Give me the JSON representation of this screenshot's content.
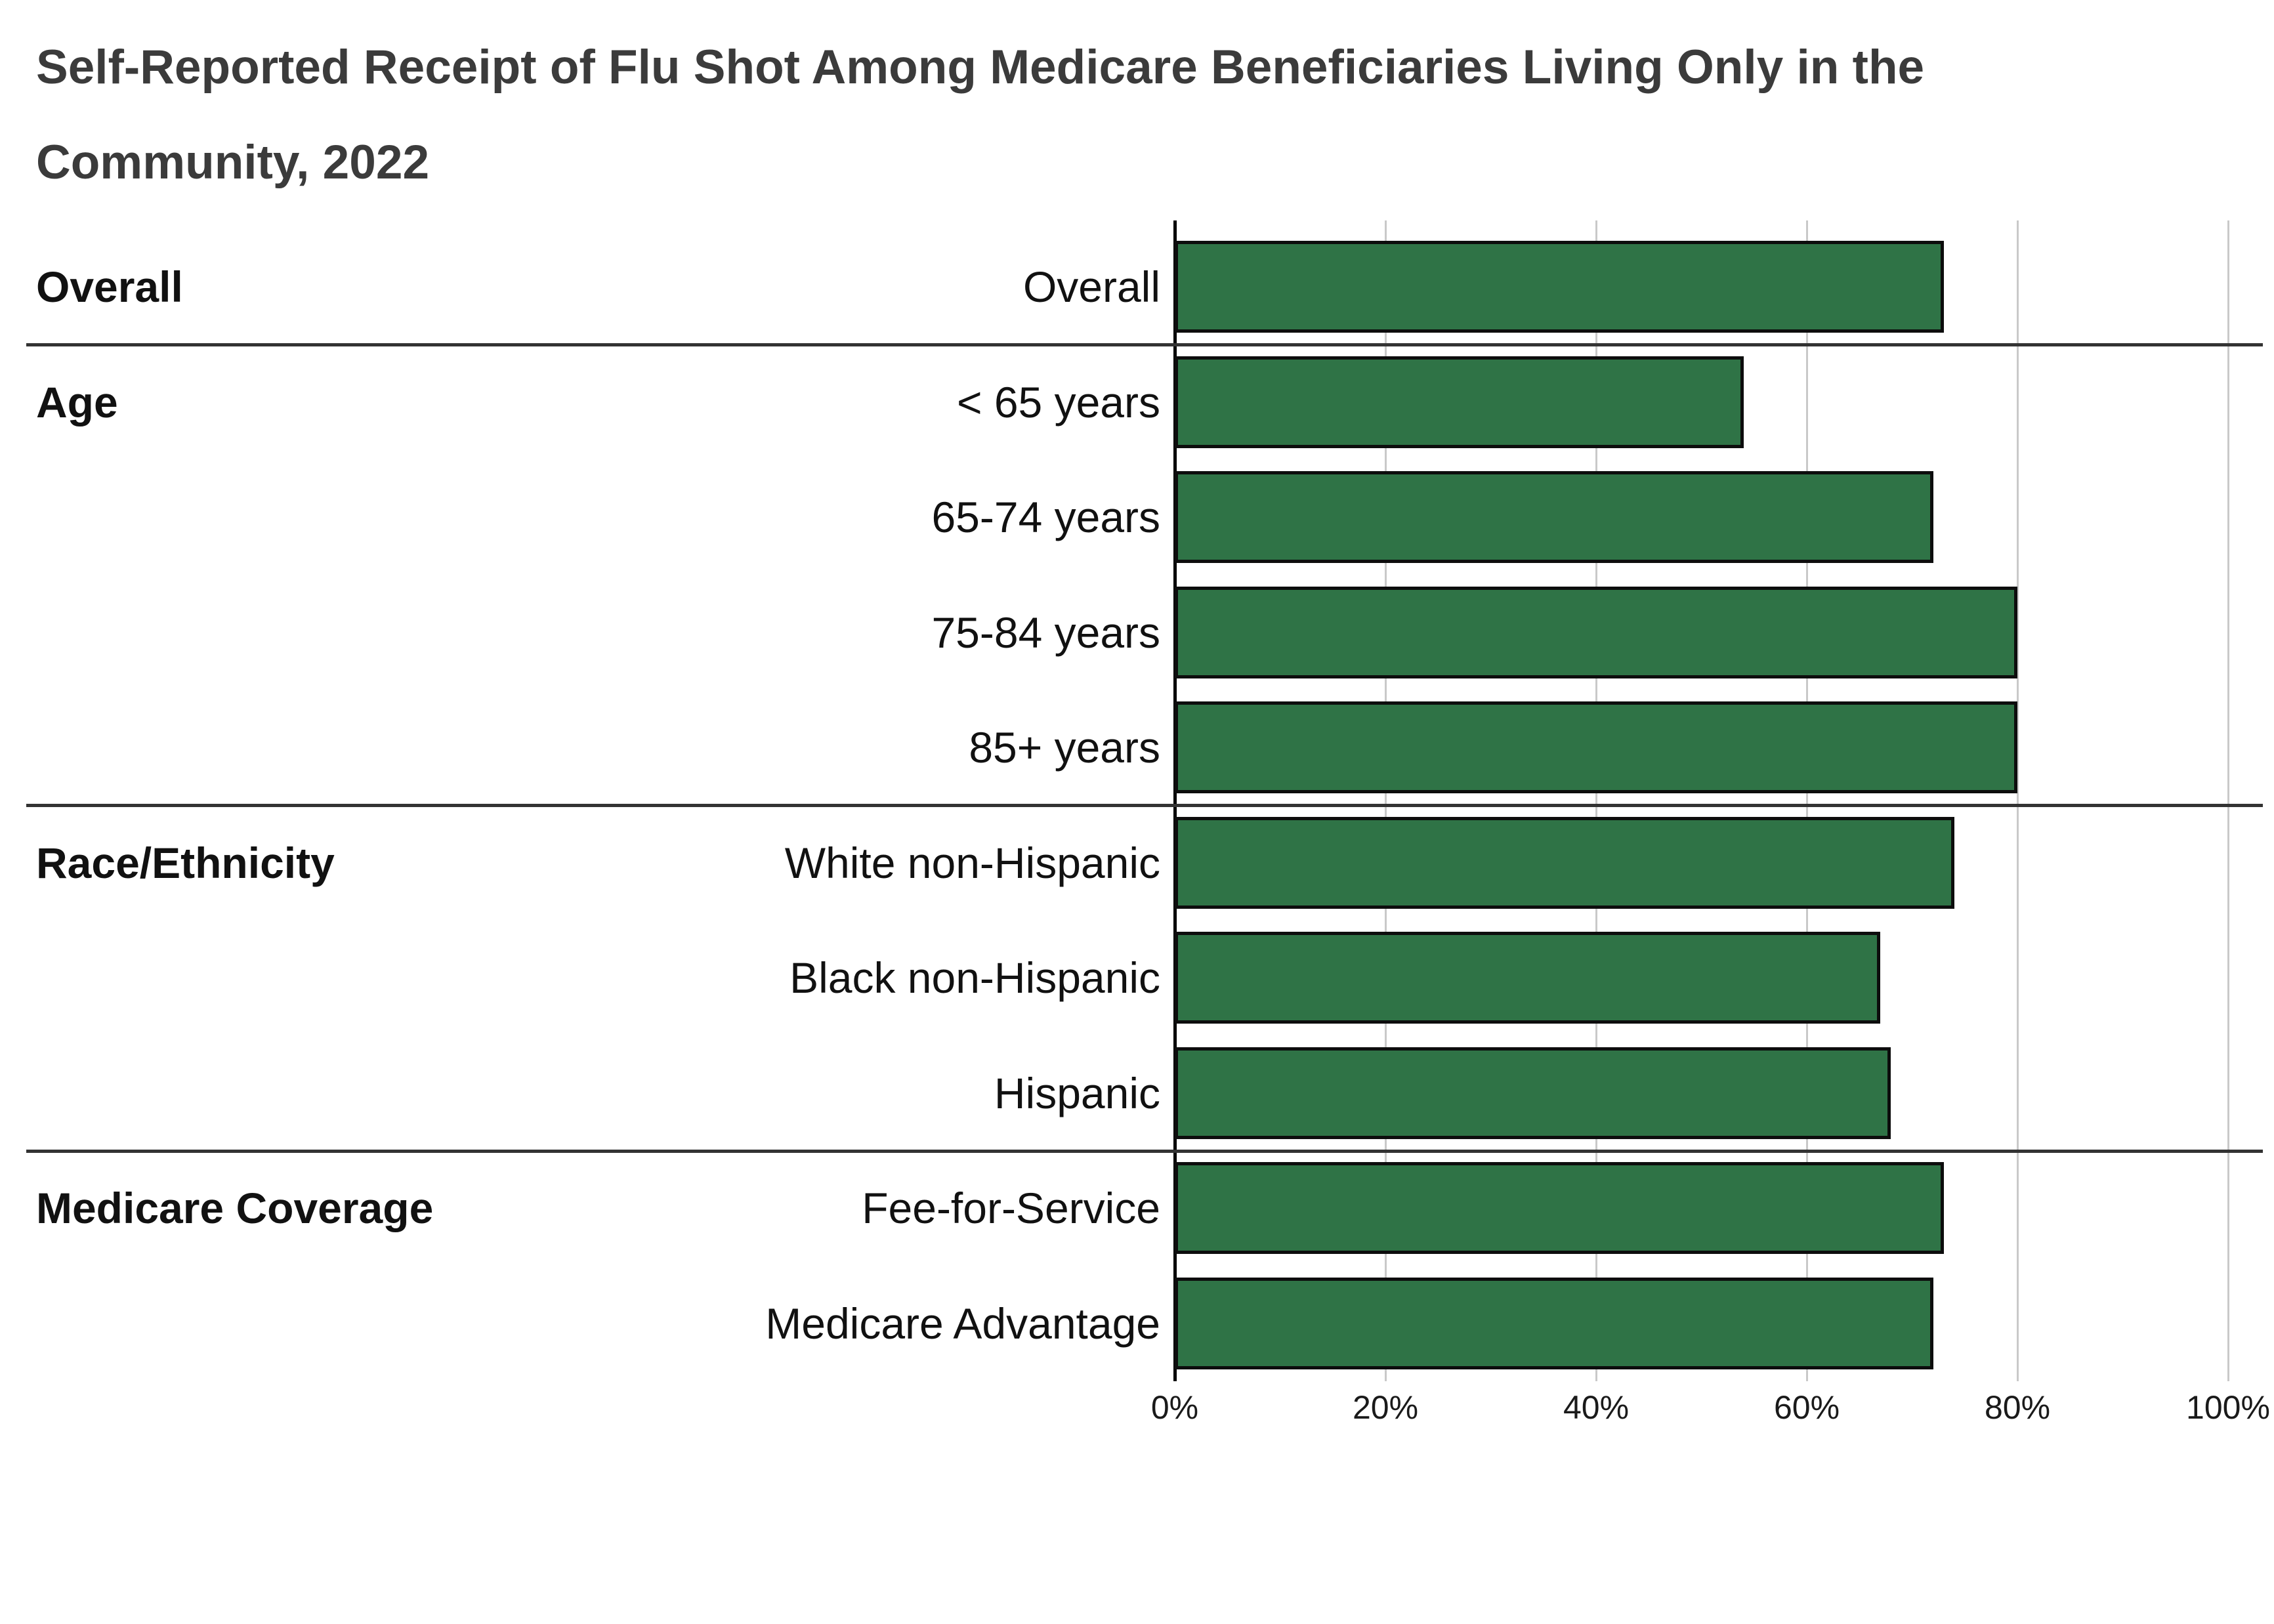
{
  "chart_data": {
    "type": "bar",
    "orientation": "horizontal",
    "title": "Self-Reported Receipt of Flu Shot Among Medicare Beneficiaries Living Only in the Community, 2022",
    "value_unit": "%",
    "xlim": [
      0,
      100
    ],
    "grid": true,
    "x_ticks": [
      {
        "label": "0%",
        "value": 0
      },
      {
        "label": "20%",
        "value": 20
      },
      {
        "label": "40%",
        "value": 40
      },
      {
        "label": "60%",
        "value": 60
      },
      {
        "label": "80%",
        "value": 80
      },
      {
        "label": "100%",
        "value": 100
      }
    ],
    "bar_color": "#2f7346",
    "bar_border_color": "#0d0d0d",
    "gridline_color": "#c9c9c9",
    "axis_color": "#000000",
    "separator_color": "#333333",
    "title_color": "#3b3b3b",
    "groups": [
      {
        "label": "Overall",
        "rows": [
          {
            "label": "Overall",
            "value": 73
          }
        ]
      },
      {
        "label": "Age",
        "rows": [
          {
            "label": "< 65 years",
            "value": 54
          },
          {
            "label": "65-74 years",
            "value": 72
          },
          {
            "label": "75-84 years",
            "value": 80
          },
          {
            "label": "85+ years",
            "value": 80
          }
        ]
      },
      {
        "label": "Race/Ethnicity",
        "rows": [
          {
            "label": "White non-Hispanic",
            "value": 74
          },
          {
            "label": "Black non-Hispanic",
            "value": 67
          },
          {
            "label": "Hispanic",
            "value": 68
          }
        ]
      },
      {
        "label": "Medicare Coverage",
        "rows": [
          {
            "label": "Fee-for-Service",
            "value": 73
          },
          {
            "label": "Medicare Advantage",
            "value": 72
          }
        ]
      }
    ]
  }
}
